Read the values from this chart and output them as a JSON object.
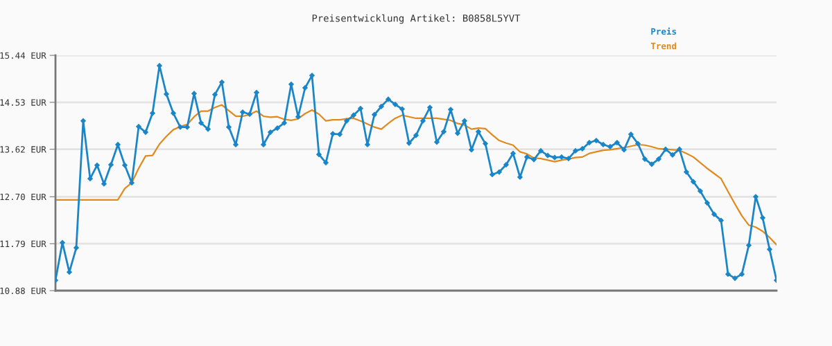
{
  "chart_data": {
    "type": "line",
    "title": "Preisentwicklung Artikel: B0858L5YVT",
    "categories": [
      null,
      null,
      null,
      null,
      null,
      null,
      null,
      null,
      null,
      null,
      null,
      null,
      null,
      null,
      null,
      null,
      null,
      null,
      null,
      null,
      null,
      null,
      null,
      null,
      null,
      null,
      null,
      null,
      null,
      null,
      null,
      null,
      null,
      null,
      null,
      null,
      null,
      null,
      null,
      null,
      null,
      null,
      null,
      null,
      null,
      null,
      null,
      null,
      null,
      null,
      null,
      null,
      null,
      null,
      null,
      null,
      null,
      null,
      null,
      null,
      null,
      null,
      null,
      null,
      null,
      null,
      null,
      null,
      null,
      null,
      null,
      null,
      null,
      null,
      null,
      null,
      null,
      null,
      null,
      null,
      null,
      null,
      null,
      null,
      null,
      null,
      null,
      null,
      null,
      null,
      null,
      null,
      null,
      null,
      null,
      null,
      null,
      null,
      null,
      null,
      null,
      null,
      null,
      null,
      null
    ],
    "series": [
      {
        "name": "Preis",
        "color": "#1a86c8",
        "marker": "diamond",
        "values": [
          11.08,
          11.81,
          11.24,
          11.71,
          14.17,
          13.05,
          13.31,
          12.95,
          13.32,
          13.71,
          13.31,
          12.97,
          14.06,
          13.95,
          14.32,
          15.24,
          14.69,
          14.32,
          14.05,
          14.05,
          14.7,
          14.13,
          14.01,
          14.68,
          14.92,
          14.05,
          13.71,
          14.34,
          14.3,
          14.72,
          13.71,
          13.95,
          14.03,
          14.13,
          14.88,
          14.25,
          14.81,
          15.05,
          13.52,
          13.36,
          13.92,
          13.91,
          14.17,
          14.28,
          14.41,
          13.71,
          14.29,
          14.45,
          14.59,
          14.49,
          14.4,
          13.74,
          13.89,
          14.17,
          14.43,
          13.76,
          13.96,
          14.39,
          13.93,
          14.17,
          13.61,
          13.96,
          13.73,
          13.13,
          13.18,
          13.32,
          13.54,
          13.08,
          13.47,
          13.42,
          13.59,
          13.5,
          13.46,
          13.47,
          13.44,
          13.59,
          13.63,
          13.75,
          13.79,
          13.71,
          13.67,
          13.75,
          13.61,
          13.91,
          13.73,
          13.43,
          13.33,
          13.43,
          13.62,
          13.51,
          13.62,
          13.18,
          12.99,
          12.81,
          12.58,
          12.36,
          12.24,
          11.2,
          11.12,
          11.2,
          11.76,
          12.7,
          12.29,
          11.68,
          11.08
        ]
      },
      {
        "name": "Trend",
        "color": "#e08a1e",
        "marker": "none",
        "values": [
          12.64,
          12.64,
          12.64,
          12.64,
          12.64,
          12.64,
          12.64,
          12.64,
          12.64,
          12.64,
          12.86,
          12.97,
          13.25,
          13.49,
          13.5,
          13.72,
          13.87,
          14.0,
          14.06,
          14.1,
          14.25,
          14.36,
          14.36,
          14.43,
          14.48,
          14.37,
          14.26,
          14.26,
          14.29,
          14.36,
          14.26,
          14.24,
          14.25,
          14.2,
          14.18,
          14.21,
          14.31,
          14.38,
          14.3,
          14.17,
          14.19,
          14.19,
          14.21,
          14.22,
          14.17,
          14.11,
          14.05,
          14.01,
          14.12,
          14.22,
          14.28,
          14.25,
          14.22,
          14.22,
          14.22,
          14.22,
          14.2,
          14.18,
          14.12,
          14.09,
          14.01,
          14.03,
          14.02,
          13.9,
          13.79,
          13.74,
          13.7,
          13.57,
          13.53,
          13.45,
          13.44,
          13.41,
          13.38,
          13.41,
          13.43,
          13.46,
          13.47,
          13.54,
          13.57,
          13.6,
          13.61,
          13.63,
          13.65,
          13.68,
          13.71,
          13.7,
          13.67,
          13.63,
          13.62,
          13.61,
          13.6,
          13.54,
          13.47,
          13.36,
          13.25,
          13.15,
          13.05,
          12.8,
          12.56,
          12.33,
          12.15,
          12.11,
          12.03,
          11.91,
          11.77
        ]
      }
    ],
    "ylim": [
      10.88,
      15.44
    ],
    "yticks": [
      {
        "value": 10.88,
        "label": "10.88 EUR"
      },
      {
        "value": 11.79,
        "label": "11.79 EUR"
      },
      {
        "value": 12.7,
        "label": "12.70 EUR"
      },
      {
        "value": 13.62,
        "label": "13.62 EUR"
      },
      {
        "value": 14.53,
        "label": "14.53 EUR"
      },
      {
        "value": 15.44,
        "label": "15.44 EUR"
      }
    ],
    "grid": "y",
    "legend": "top right",
    "line_style": "solid"
  }
}
